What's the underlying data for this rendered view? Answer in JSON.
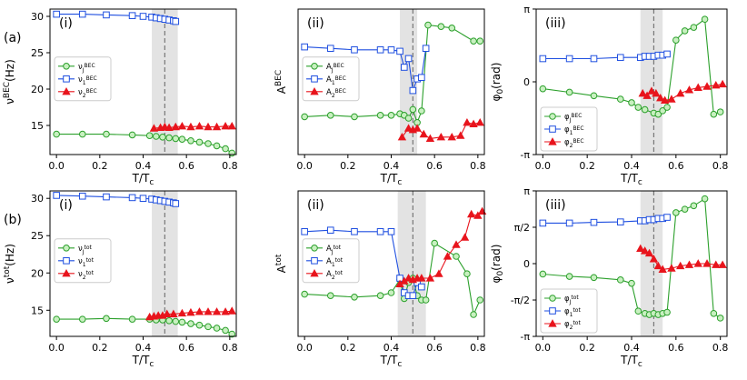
{
  "colors": {
    "green": "#2ca02c",
    "blue": "#1f4fe0",
    "red": "#e8141c",
    "shade": "#d9d9d9",
    "dash": "#777777"
  },
  "row_labels": [
    "(a)",
    "(b)"
  ],
  "chart_data": [
    {
      "type": "line",
      "panel_label": "(i)",
      "xlabel": "T/T_c",
      "ylabel": "ν^BEC(Hz)",
      "xlim": [
        -0.03,
        0.83
      ],
      "ylim": [
        11,
        31
      ],
      "xticks": [
        0.0,
        0.2,
        0.4,
        0.6,
        0.8
      ],
      "xtick_labels": [
        "0.0",
        "0.2",
        "0.4",
        "0.6",
        "0.8"
      ],
      "yticks": [
        15,
        20,
        25,
        30
      ],
      "ytick_labels": [
        "15",
        "20",
        "25",
        "30"
      ],
      "shade": [
        0.44,
        0.56
      ],
      "dashed_x": 0.5,
      "legend_position": "center-left",
      "series": [
        {
          "name": "ν_J^BEC",
          "color": "green",
          "marker": "circle",
          "x": [
            0.0,
            0.12,
            0.23,
            0.35,
            0.43,
            0.46,
            0.49,
            0.52,
            0.55,
            0.58,
            0.62,
            0.66,
            0.7,
            0.74,
            0.78,
            0.81
          ],
          "y": [
            13.8,
            13.8,
            13.8,
            13.7,
            13.6,
            13.5,
            13.4,
            13.3,
            13.2,
            13.1,
            12.9,
            12.7,
            12.5,
            12.2,
            11.8,
            11.2
          ]
        },
        {
          "name": "ν_1^BEC",
          "color": "blue",
          "marker": "square",
          "x": [
            0.0,
            0.12,
            0.23,
            0.35,
            0.4,
            0.44,
            0.46,
            0.48,
            0.5,
            0.52,
            0.54,
            0.55
          ],
          "y": [
            30.3,
            30.3,
            30.2,
            30.1,
            30.0,
            29.9,
            29.8,
            29.7,
            29.6,
            29.5,
            29.4,
            29.3
          ]
        },
        {
          "name": "ν_2^BEC",
          "color": "red",
          "marker": "triangle",
          "x": [
            0.45,
            0.48,
            0.5,
            0.52,
            0.55,
            0.58,
            0.62,
            0.66,
            0.7,
            0.74,
            0.78,
            0.81
          ],
          "y": [
            14.6,
            14.7,
            14.8,
            14.7,
            14.8,
            14.9,
            14.8,
            14.9,
            14.8,
            14.8,
            14.9,
            14.9
          ]
        }
      ]
    },
    {
      "type": "line",
      "panel_label": "(ii)",
      "xlabel": "T/T_c",
      "ylabel": "A^BEC",
      "xlim": [
        -0.03,
        0.83
      ],
      "ylim": [
        0.0,
        1.0
      ],
      "xticks": [
        0.0,
        0.2,
        0.4,
        0.6,
        0.8
      ],
      "xtick_labels": [
        "0.0",
        "0.2",
        "0.4",
        "0.6",
        "0.8"
      ],
      "yticks": [],
      "ytick_labels": [],
      "shade": [
        0.44,
        0.52
      ],
      "dashed_x": 0.5,
      "legend_position": "center-left",
      "series": [
        {
          "name": "A_J^BEC",
          "color": "green",
          "marker": "circle",
          "x": [
            0.0,
            0.12,
            0.23,
            0.35,
            0.4,
            0.44,
            0.46,
            0.48,
            0.5,
            0.52,
            0.54,
            0.57,
            0.63,
            0.68,
            0.78,
            0.81
          ],
          "y": [
            0.26,
            0.27,
            0.26,
            0.27,
            0.27,
            0.28,
            0.27,
            0.25,
            0.31,
            0.22,
            0.3,
            0.89,
            0.88,
            0.87,
            0.78,
            0.78
          ]
        },
        {
          "name": "A_1^BEC",
          "color": "blue",
          "marker": "square",
          "x": [
            0.0,
            0.12,
            0.23,
            0.35,
            0.4,
            0.44,
            0.46,
            0.48,
            0.5,
            0.52,
            0.54,
            0.56
          ],
          "y": [
            0.74,
            0.73,
            0.72,
            0.72,
            0.72,
            0.71,
            0.6,
            0.66,
            0.44,
            0.52,
            0.53,
            0.73
          ]
        },
        {
          "name": "A_2^BEC",
          "color": "red",
          "marker": "triangle",
          "x": [
            0.45,
            0.48,
            0.5,
            0.52,
            0.55,
            0.58,
            0.63,
            0.68,
            0.72,
            0.75,
            0.78,
            0.81
          ],
          "y": [
            0.12,
            0.18,
            0.17,
            0.18,
            0.14,
            0.11,
            0.12,
            0.12,
            0.13,
            0.22,
            0.21,
            0.22
          ]
        }
      ]
    },
    {
      "type": "line",
      "panel_label": "(iii)",
      "xlabel": "T/T_c",
      "ylabel": "φ_0(rad)",
      "xlim": [
        -0.03,
        0.83
      ],
      "ylim": [
        -3.14,
        3.14
      ],
      "xticks": [
        0.0,
        0.2,
        0.4,
        0.6,
        0.8
      ],
      "xtick_labels": [
        "0.0",
        "0.2",
        "0.4",
        "0.6",
        "0.8"
      ],
      "yticks": [
        -3.1416,
        0.0,
        3.1416
      ],
      "ytick_labels": [
        "-π",
        "0",
        "π"
      ],
      "shade": [
        0.44,
        0.54
      ],
      "dashed_x": 0.5,
      "legend_position": "bottom-left",
      "series": [
        {
          "name": "φ_J^BEC",
          "color": "green",
          "marker": "circle",
          "x": [
            0.0,
            0.12,
            0.23,
            0.35,
            0.4,
            0.43,
            0.46,
            0.5,
            0.52,
            0.54,
            0.56,
            0.6,
            0.64,
            0.68,
            0.73,
            0.77,
            0.8
          ],
          "y": [
            -0.3,
            -0.45,
            -0.6,
            -0.75,
            -0.9,
            -1.1,
            -1.2,
            -1.35,
            -1.4,
            -1.25,
            -1.1,
            1.8,
            2.2,
            2.35,
            2.7,
            -1.4,
            -1.3
          ]
        },
        {
          "name": "φ_1^BEC",
          "color": "blue",
          "marker": "square",
          "x": [
            0.0,
            0.12,
            0.23,
            0.35,
            0.44,
            0.46,
            0.48,
            0.5,
            0.52,
            0.54,
            0.56
          ],
          "y": [
            1.0,
            1.0,
            1.0,
            1.05,
            1.05,
            1.1,
            1.1,
            1.1,
            1.15,
            1.15,
            1.2
          ]
        },
        {
          "name": "φ_2^BEC",
          "color": "red",
          "marker": "triangle",
          "x": [
            0.45,
            0.47,
            0.49,
            0.51,
            0.53,
            0.55,
            0.58,
            0.62,
            0.66,
            0.7,
            0.74,
            0.78,
            0.81
          ],
          "y": [
            -0.5,
            -0.6,
            -0.4,
            -0.5,
            -0.7,
            -0.8,
            -0.75,
            -0.5,
            -0.35,
            -0.25,
            -0.2,
            -0.15,
            -0.1
          ]
        }
      ]
    },
    {
      "type": "line",
      "panel_label": "(i)",
      "xlabel": "T/T_c",
      "ylabel": "ν^tot(Hz)",
      "xlim": [
        -0.03,
        0.83
      ],
      "ylim": [
        11.5,
        31
      ],
      "xticks": [
        0.0,
        0.2,
        0.4,
        0.6,
        0.8
      ],
      "xtick_labels": [
        "0.0",
        "0.2",
        "0.4",
        "0.6",
        "0.8"
      ],
      "yticks": [
        15,
        20,
        25,
        30
      ],
      "ytick_labels": [
        "15",
        "20",
        "25",
        "30"
      ],
      "shade": [
        0.44,
        0.56
      ],
      "dashed_x": 0.5,
      "legend_position": "center-left",
      "series": [
        {
          "name": "ν_J^tot",
          "color": "green",
          "marker": "circle",
          "x": [
            0.0,
            0.12,
            0.23,
            0.35,
            0.43,
            0.46,
            0.49,
            0.52,
            0.55,
            0.58,
            0.62,
            0.66,
            0.7,
            0.74,
            0.78,
            0.81
          ],
          "y": [
            13.8,
            13.8,
            13.9,
            13.8,
            13.8,
            13.7,
            13.7,
            13.6,
            13.5,
            13.4,
            13.2,
            13.0,
            12.8,
            12.6,
            12.3,
            11.8
          ]
        },
        {
          "name": "ν_1^tot",
          "color": "blue",
          "marker": "square",
          "x": [
            0.0,
            0.12,
            0.23,
            0.35,
            0.4,
            0.44,
            0.46,
            0.48,
            0.5,
            0.52,
            0.54,
            0.55
          ],
          "y": [
            30.4,
            30.3,
            30.2,
            30.1,
            30.0,
            29.9,
            29.8,
            29.7,
            29.6,
            29.5,
            29.4,
            29.3
          ]
        },
        {
          "name": "ν_2^tot",
          "color": "red",
          "marker": "triangle",
          "x": [
            0.43,
            0.45,
            0.47,
            0.49,
            0.51,
            0.54,
            0.58,
            0.62,
            0.66,
            0.7,
            0.74,
            0.78,
            0.81
          ],
          "y": [
            14.1,
            14.2,
            14.3,
            14.3,
            14.5,
            14.5,
            14.6,
            14.7,
            14.8,
            14.8,
            14.8,
            14.8,
            14.9
          ]
        }
      ]
    },
    {
      "type": "line",
      "panel_label": "(ii)",
      "xlabel": "T/T_c",
      "ylabel": "A^tot",
      "xlim": [
        -0.03,
        0.83
      ],
      "ylim": [
        0.0,
        1.0
      ],
      "xticks": [
        0.0,
        0.2,
        0.4,
        0.6,
        0.8
      ],
      "xtick_labels": [
        "0.0",
        "0.2",
        "0.4",
        "0.6",
        "0.8"
      ],
      "yticks": [],
      "ytick_labels": [],
      "shade": [
        0.43,
        0.56
      ],
      "dashed_x": 0.5,
      "legend_position": "center-left",
      "series": [
        {
          "name": "A_J^tot",
          "color": "green",
          "marker": "circle",
          "x": [
            0.0,
            0.12,
            0.23,
            0.35,
            0.4,
            0.44,
            0.46,
            0.48,
            0.5,
            0.52,
            0.54,
            0.56,
            0.6,
            0.7,
            0.75,
            0.78,
            0.81
          ],
          "y": [
            0.29,
            0.28,
            0.27,
            0.28,
            0.3,
            0.39,
            0.26,
            0.37,
            0.4,
            0.28,
            0.25,
            0.25,
            0.64,
            0.55,
            0.43,
            0.15,
            0.25
          ]
        },
        {
          "name": "A_1^tot",
          "color": "blue",
          "marker": "square",
          "x": [
            0.0,
            0.12,
            0.23,
            0.35,
            0.4,
            0.44,
            0.46,
            0.48,
            0.5,
            0.52,
            0.54
          ],
          "y": [
            0.72,
            0.73,
            0.72,
            0.72,
            0.72,
            0.4,
            0.3,
            0.28,
            0.28,
            0.37,
            0.34
          ]
        },
        {
          "name": "A_2^tot",
          "color": "red",
          "marker": "triangle",
          "x": [
            0.44,
            0.46,
            0.48,
            0.5,
            0.52,
            0.54,
            0.58,
            0.62,
            0.66,
            0.7,
            0.74,
            0.77,
            0.8,
            0.82
          ],
          "y": [
            0.36,
            0.38,
            0.4,
            0.39,
            0.4,
            0.4,
            0.4,
            0.43,
            0.55,
            0.63,
            0.68,
            0.84,
            0.83,
            0.86
          ]
        }
      ]
    },
    {
      "type": "line",
      "panel_label": "(iii)",
      "xlabel": "T/T_c",
      "ylabel": "φ_0(rad)",
      "xlim": [
        -0.03,
        0.83
      ],
      "ylim": [
        -3.14,
        3.14
      ],
      "xticks": [
        0.0,
        0.2,
        0.4,
        0.6,
        0.8
      ],
      "xtick_labels": [
        "0.0",
        "0.2",
        "0.4",
        "0.6",
        "0.8"
      ],
      "yticks": [
        -3.1416,
        -1.5708,
        0.0,
        1.5708,
        3.1416
      ],
      "ytick_labels": [
        "-π",
        "-π/2",
        "0",
        "π/2",
        "π"
      ],
      "shade": [
        0.44,
        0.54
      ],
      "dashed_x": 0.5,
      "legend_position": "bottom-left",
      "series": [
        {
          "name": "φ_J^tot",
          "color": "green",
          "marker": "circle",
          "x": [
            0.0,
            0.12,
            0.23,
            0.35,
            0.4,
            0.43,
            0.46,
            0.48,
            0.5,
            0.52,
            0.54,
            0.56,
            0.6,
            0.64,
            0.68,
            0.73,
            0.77,
            0.8
          ],
          "y": [
            -0.45,
            -0.55,
            -0.6,
            -0.7,
            -0.85,
            -2.05,
            -2.15,
            -2.2,
            -2.15,
            -2.2,
            -2.15,
            -2.1,
            2.2,
            2.35,
            2.5,
            2.8,
            -2.15,
            -2.35
          ]
        },
        {
          "name": "φ_1^tot",
          "color": "blue",
          "marker": "square",
          "x": [
            0.0,
            0.12,
            0.23,
            0.35,
            0.44,
            0.46,
            0.48,
            0.5,
            0.52,
            0.54,
            0.56
          ],
          "y": [
            1.75,
            1.75,
            1.78,
            1.8,
            1.85,
            1.85,
            1.9,
            1.9,
            1.95,
            1.95,
            2.0
          ]
        },
        {
          "name": "φ_2^tot",
          "color": "red",
          "marker": "triangle",
          "x": [
            0.44,
            0.46,
            0.48,
            0.5,
            0.52,
            0.54,
            0.58,
            0.62,
            0.66,
            0.7,
            0.74,
            0.78,
            0.81
          ],
          "y": [
            0.65,
            0.55,
            0.45,
            0.2,
            -0.1,
            -0.25,
            -0.2,
            -0.1,
            -0.05,
            0.0,
            0.0,
            -0.05,
            -0.05
          ]
        }
      ]
    }
  ]
}
